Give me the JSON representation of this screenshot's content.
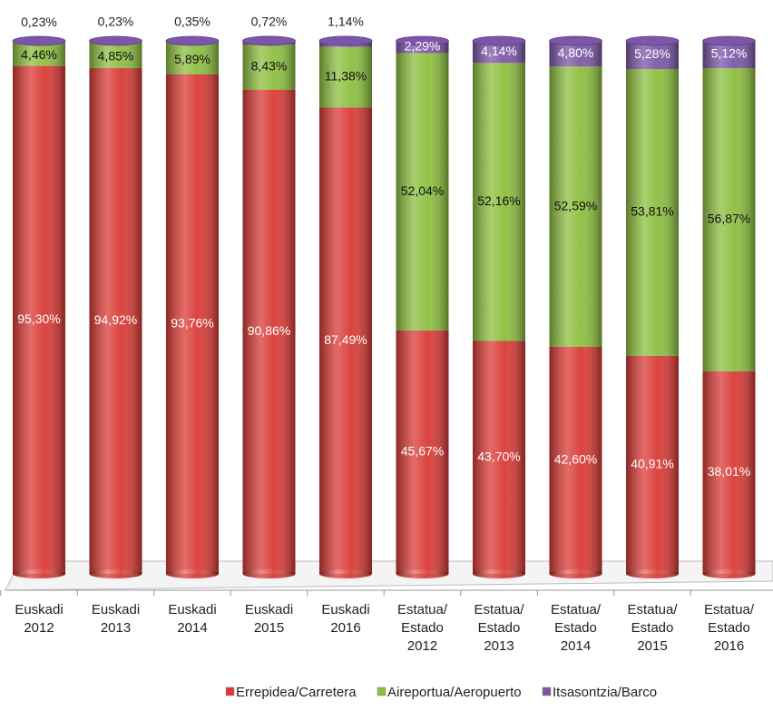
{
  "chart_data": {
    "type": "bar",
    "stacked": true,
    "categories": [
      [
        "Euskadi",
        "2012"
      ],
      [
        "Euskadi",
        "2013"
      ],
      [
        "Euskadi",
        "2014"
      ],
      [
        "Euskadi",
        "2015"
      ],
      [
        "Euskadi",
        "2016"
      ],
      [
        "Estatua/",
        "Estado",
        "2012"
      ],
      [
        "Estatua/",
        "Estado",
        "2013"
      ],
      [
        "Estatua/",
        "Estado",
        "2014"
      ],
      [
        "Estatua/",
        "Estado",
        "2015"
      ],
      [
        "Estatua/",
        "Estado",
        "2016"
      ]
    ],
    "series": [
      {
        "name": "Errepidea/Carretera",
        "color": "#d93a35",
        "values": [
          95.3,
          94.92,
          93.76,
          90.86,
          87.49,
          45.67,
          43.7,
          42.6,
          40.91,
          38.01
        ],
        "value_labels": [
          "95,30%",
          "94,92%",
          "93,76%",
          "90,86%",
          "87,49%",
          "45,67%",
          "43,70%",
          "42,60%",
          "40,91%",
          "38,01%"
        ]
      },
      {
        "name": "Aireportua/Aeropuerto",
        "color": "#8cbf3f",
        "values": [
          4.46,
          4.85,
          5.89,
          8.43,
          11.38,
          52.04,
          52.16,
          52.59,
          53.81,
          56.87
        ],
        "value_labels": [
          "4,46%",
          "4,85%",
          "5,89%",
          "8,43%",
          "11,38%",
          "52,04%",
          "52,16%",
          "52,59%",
          "53,81%",
          "56,87%"
        ]
      },
      {
        "name": "Itsasontzia/Barco",
        "color": "#7c56a8",
        "values": [
          0.23,
          0.23,
          0.35,
          0.72,
          1.14,
          2.29,
          4.14,
          4.8,
          5.28,
          5.12
        ],
        "value_labels": [
          "0,23%",
          "0,23%",
          "0,35%",
          "0,72%",
          "1,14%",
          "2,29%",
          "4,14%",
          "4,80%",
          "5,28%",
          "5,12%"
        ]
      }
    ],
    "ylim": [
      0,
      100
    ],
    "legend": "bottom"
  }
}
